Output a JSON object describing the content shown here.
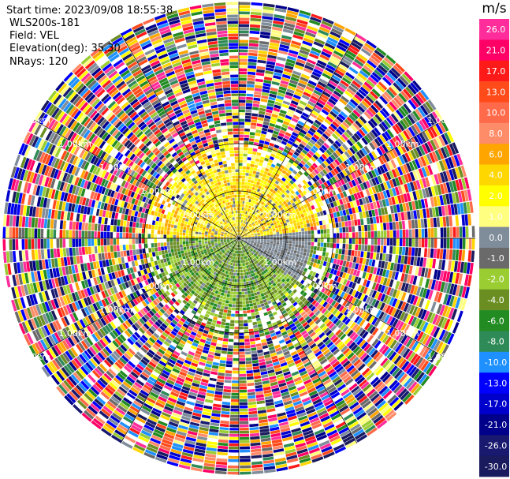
{
  "header": {
    "start_time": "Start time: 2023/09/08 18:55:38",
    "instrument": "WLS200s-181",
    "field": "Field: VEL",
    "elevation": "Elevation(deg): 35.30",
    "nrays": "NRays: 120"
  },
  "colorbar": {
    "unit": "m/s",
    "bins": [
      {
        "label": "26.0",
        "color": "#ff2d9b"
      },
      {
        "label": "21.0",
        "color": "#ff0066"
      },
      {
        "label": "17.0",
        "color": "#ff1a1a"
      },
      {
        "label": "13.0",
        "color": "#ff4a1a"
      },
      {
        "label": "10.0",
        "color": "#ff6a4a"
      },
      {
        "label": "8.0",
        "color": "#ff8c69"
      },
      {
        "label": "6.0",
        "color": "#ffa500"
      },
      {
        "label": "4.0",
        "color": "#ffd700"
      },
      {
        "label": "2.0",
        "color": "#ffff00"
      },
      {
        "label": "1.0",
        "color": "#ffff80"
      },
      {
        "label": "0.0",
        "color": "#7f8c9a"
      },
      {
        "label": "-1.0",
        "color": "#6a6a6a"
      },
      {
        "label": "-2.0",
        "color": "#9acd32"
      },
      {
        "label": "-4.0",
        "color": "#6b8e23"
      },
      {
        "label": "-6.0",
        "color": "#228b22"
      },
      {
        "label": "-8.0",
        "color": "#2e8b57"
      },
      {
        "label": "-10.0",
        "color": "#1e90ff"
      },
      {
        "label": "-13.0",
        "color": "#0000ff"
      },
      {
        "label": "-17.0",
        "color": "#0000cd"
      },
      {
        "label": "-21.0",
        "color": "#00008b"
      },
      {
        "label": "-26.0",
        "color": "#191970"
      },
      {
        "label": "-30.0",
        "color": "#1a1a5e"
      }
    ]
  },
  "chart_data": {
    "type": "heatmap",
    "subtype": "ppi",
    "field": "VEL",
    "elevation_deg": 35.3,
    "nrays": 120,
    "range_rings_km": [
      1.0,
      2.0,
      3.0,
      4.0,
      5.0
    ],
    "ring_label": "1.00km",
    "vmin": -30.0,
    "vmax": 26.0
  }
}
